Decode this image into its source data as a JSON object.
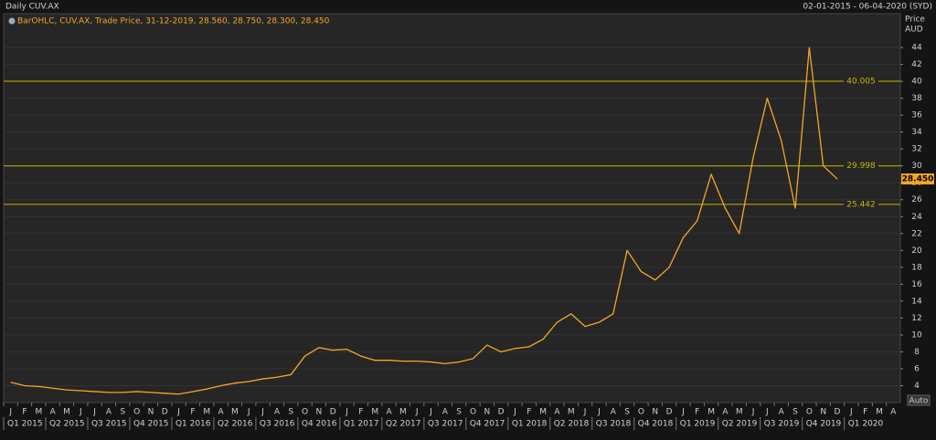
{
  "chart_data": {
    "type": "line",
    "title": "Daily CUV.AX",
    "date_range": "02-01-2015 - 06-04-2020 (SYD)",
    "legend_text": "BarOHLC, CUV.AX, Trade Price, 31-12-2019, 28.560, 28.750, 28.300, 28.450",
    "ylabel": "Price",
    "yunit": "AUD",
    "auto_label": "Auto",
    "months": [
      "J",
      "F",
      "M",
      "A",
      "M",
      "J",
      "J",
      "A",
      "S",
      "O",
      "N",
      "D",
      "J",
      "F",
      "M",
      "A",
      "M",
      "J",
      "J",
      "A",
      "S",
      "O",
      "N",
      "D",
      "J",
      "F",
      "M",
      "A",
      "M",
      "J",
      "J",
      "A",
      "S",
      "O",
      "N",
      "D",
      "J",
      "F",
      "M",
      "A",
      "M",
      "J",
      "J",
      "A",
      "S",
      "O",
      "N",
      "D",
      "J",
      "F",
      "M",
      "A",
      "M",
      "J",
      "J",
      "A",
      "S",
      "O",
      "N",
      "D",
      "J",
      "F",
      "M",
      "A"
    ],
    "quarters": [
      "Q1 2015",
      "Q2 2015",
      "Q3 2015",
      "Q4 2015",
      "Q1 2016",
      "Q2 2016",
      "Q3 2016",
      "Q4 2016",
      "Q1 2017",
      "Q2 2017",
      "Q3 2017",
      "Q4 2017",
      "Q1 2018",
      "Q2 2018",
      "Q3 2018",
      "Q4 2018",
      "Q1 2019",
      "Q2 2019",
      "Q3 2019",
      "Q4 2019",
      "Q1 2020"
    ],
    "x": [
      "2015-01",
      "2015-02",
      "2015-03",
      "2015-04",
      "2015-05",
      "2015-06",
      "2015-07",
      "2015-08",
      "2015-09",
      "2015-10",
      "2015-11",
      "2015-12",
      "2016-01",
      "2016-02",
      "2016-03",
      "2016-04",
      "2016-05",
      "2016-06",
      "2016-07",
      "2016-08",
      "2016-09",
      "2016-10",
      "2016-11",
      "2016-12",
      "2017-01",
      "2017-02",
      "2017-03",
      "2017-04",
      "2017-05",
      "2017-06",
      "2017-07",
      "2017-08",
      "2017-09",
      "2017-10",
      "2017-11",
      "2017-12",
      "2018-01",
      "2018-02",
      "2018-03",
      "2018-04",
      "2018-05",
      "2018-06",
      "2018-07",
      "2018-08",
      "2018-09",
      "2018-10",
      "2018-11",
      "2018-12",
      "2019-01",
      "2019-02",
      "2019-03",
      "2019-04",
      "2019-05",
      "2019-06",
      "2019-07",
      "2019-08",
      "2019-09",
      "2019-10",
      "2019-11",
      "2019-12"
    ],
    "series": [
      {
        "color": "#f5a623",
        "values": [
          4.4,
          4.0,
          3.9,
          3.7,
          3.5,
          3.4,
          3.3,
          3.2,
          3.2,
          3.3,
          3.2,
          3.1,
          3.0,
          3.3,
          3.6,
          4.0,
          4.3,
          4.5,
          4.8,
          5.0,
          5.3,
          7.5,
          8.5,
          8.2,
          8.3,
          7.5,
          7.0,
          7.0,
          6.9,
          6.9,
          6.8,
          6.6,
          6.8,
          7.2,
          8.8,
          8.0,
          8.4,
          8.6,
          9.5,
          11.5,
          12.5,
          11.0,
          11.5,
          12.5,
          20.0,
          17.5,
          16.5,
          18.0,
          21.5,
          23.5,
          29.0,
          25.0,
          22.0,
          31.0,
          38.0,
          33.0,
          25.0,
          44.0,
          30.0,
          28.45
        ]
      }
    ],
    "ylim": [
      2,
      48
    ],
    "yticks": [
      4,
      6,
      8,
      10,
      12,
      14,
      16,
      18,
      20,
      22,
      24,
      26,
      28,
      30,
      32,
      34,
      36,
      38,
      40,
      42,
      44
    ],
    "grid": true,
    "hlines": {
      "color": "#c8b400",
      "values": [
        40.005,
        29.998,
        25.442
      ]
    },
    "last_price": {
      "value": 28.45,
      "label": "28.450"
    }
  }
}
